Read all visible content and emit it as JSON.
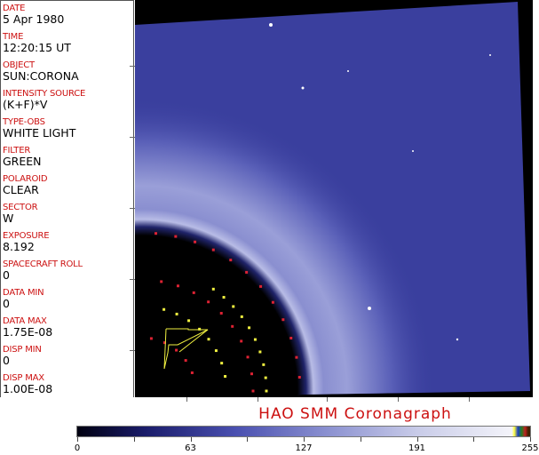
{
  "header_fields": [
    {
      "label": "DATE",
      "value": "5 Apr 1980"
    },
    {
      "label": "TIME",
      "value": "12:20:15 UT"
    },
    {
      "label": "OBJECT",
      "value": "SUN:CORONA"
    },
    {
      "label": "INTENSITY SOURCE",
      "value": "(K+F)*V"
    },
    {
      "label": "TYPE-OBS",
      "value": "WHITE LIGHT"
    },
    {
      "label": "FILTER",
      "value": "GREEN"
    },
    {
      "label": "POLAROID",
      "value": "CLEAR"
    },
    {
      "label": "SECTOR",
      "value": "W"
    },
    {
      "label": "EXPOSURE",
      "value": "8.192"
    },
    {
      "label": "SPACECRAFT ROLL",
      "value": "0"
    },
    {
      "label": "DATA MIN",
      "value": "0"
    },
    {
      "label": "DATA MAX",
      "value": "1.75E-08"
    },
    {
      "label": "DISP MIN",
      "value": "0"
    },
    {
      "label": "DISP MAX",
      "value": "1.00E-08"
    }
  ],
  "title": "HAO   SMM  Coronagraph",
  "colorbar": {
    "ticks": [
      "0",
      "63",
      "127",
      "191",
      "255"
    ],
    "colors": {
      "low": "#000010",
      "mid": "#4a50b0",
      "high": "#f4f4fa"
    }
  },
  "image": {
    "sky_color": "#3a3f9e",
    "occulter_color": "#000000",
    "overlay_red": "#dd2233",
    "overlay_yellow": "#f0f040"
  }
}
